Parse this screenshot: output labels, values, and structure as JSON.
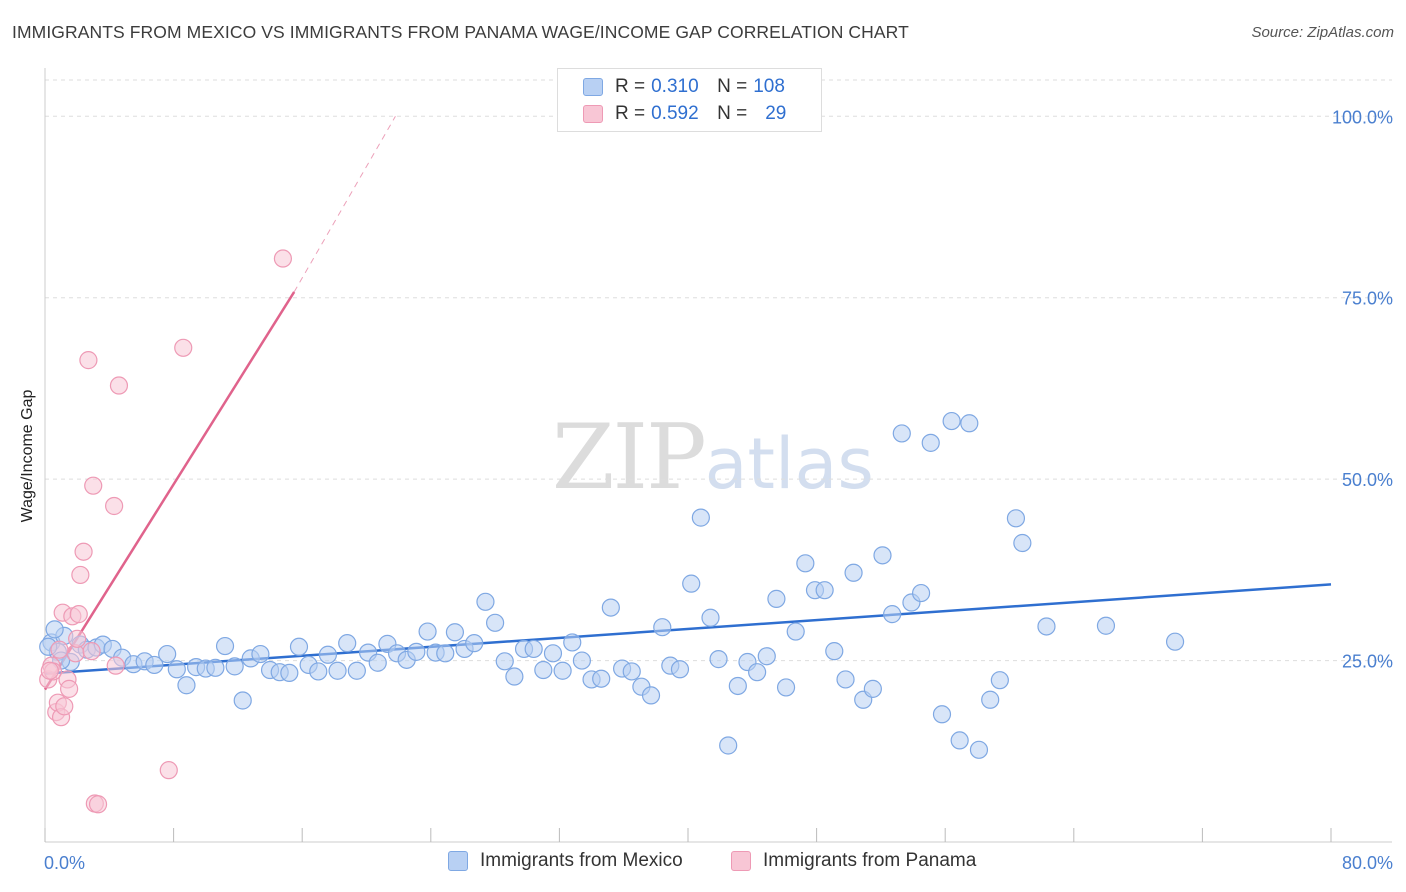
{
  "title": "IMMIGRANTS FROM MEXICO VS IMMIGRANTS FROM PANAMA WAGE/INCOME GAP CORRELATION CHART",
  "source": "Source: ZipAtlas.com",
  "watermark": {
    "zip": "ZIP",
    "atlas": "atlas"
  },
  "colors": {
    "mexico_fill": "#b8d0f3",
    "mexico_stroke": "#7fa8e3",
    "mexico_line": "#2f6fd0",
    "panama_fill": "#f8c6d5",
    "panama_stroke": "#ee9ab5",
    "panama_line": "#e0638c",
    "grid": "#dddddd",
    "axis_text": "#4a7fcf"
  },
  "legend": {
    "rows": [
      {
        "r_label": "R = ",
        "r_value": "0.310",
        "n_label": "N = ",
        "n_value": "108"
      },
      {
        "r_label": "R = ",
        "r_value": "0.592",
        "n_label": "N = ",
        "n_value": "29"
      }
    ]
  },
  "chart_data": {
    "type": "scatter",
    "title": "IMMIGRANTS FROM MEXICO VS IMMIGRANTS FROM PANAMA WAGE/INCOME GAP CORRELATION CHART",
    "xlabel": "",
    "ylabel": "Wage/Income Gap",
    "xlim": [
      0,
      80
    ],
    "ylim": [
      0,
      105
    ],
    "x_tick_labels": [
      "0.0%",
      "80.0%"
    ],
    "y_ticks": [
      25,
      50,
      75,
      100
    ],
    "y_tick_labels": [
      "25.0%",
      "50.0%",
      "75.0%",
      "100.0%"
    ],
    "series": [
      {
        "name": "Immigrants from Mexico",
        "r": 0.31,
        "n": 108,
        "trend": {
          "x0": 0,
          "y0": 23.2,
          "x1": 80,
          "y1": 35.5
        },
        "points": [
          [
            0.4,
            27.5
          ],
          [
            0.8,
            26.2
          ],
          [
            1.2,
            28.4
          ],
          [
            1.6,
            24.8
          ],
          [
            2.2,
            27.2
          ],
          [
            2.6,
            26.5
          ],
          [
            3.2,
            26.8
          ],
          [
            3.6,
            27.2
          ],
          [
            4.2,
            26.6
          ],
          [
            4.8,
            25.4
          ],
          [
            5.5,
            24.5
          ],
          [
            6.2,
            24.9
          ],
          [
            6.8,
            24.4
          ],
          [
            7.6,
            25.9
          ],
          [
            8.2,
            23.8
          ],
          [
            8.8,
            21.6
          ],
          [
            9.4,
            24.1
          ],
          [
            10.0,
            23.9
          ],
          [
            10.6,
            24.0
          ],
          [
            11.2,
            27.0
          ],
          [
            11.8,
            24.2
          ],
          [
            12.3,
            19.5
          ],
          [
            12.8,
            25.3
          ],
          [
            13.4,
            25.9
          ],
          [
            14.0,
            23.7
          ],
          [
            14.6,
            23.4
          ],
          [
            15.2,
            23.3
          ],
          [
            15.8,
            26.9
          ],
          [
            16.4,
            24.4
          ],
          [
            17.0,
            23.5
          ],
          [
            17.6,
            25.8
          ],
          [
            18.2,
            23.6
          ],
          [
            18.8,
            27.4
          ],
          [
            19.4,
            23.6
          ],
          [
            20.1,
            26.1
          ],
          [
            20.7,
            24.7
          ],
          [
            21.3,
            27.3
          ],
          [
            21.9,
            26.0
          ],
          [
            22.5,
            25.1
          ],
          [
            23.1,
            26.2
          ],
          [
            23.8,
            29.0
          ],
          [
            24.3,
            26.1
          ],
          [
            24.9,
            26.0
          ],
          [
            25.5,
            28.9
          ],
          [
            26.1,
            26.6
          ],
          [
            26.7,
            27.4
          ],
          [
            27.4,
            33.1
          ],
          [
            28.0,
            30.2
          ],
          [
            28.6,
            24.9
          ],
          [
            29.2,
            22.8
          ],
          [
            29.8,
            26.6
          ],
          [
            30.4,
            26.6
          ],
          [
            31.0,
            23.7
          ],
          [
            31.6,
            26.0
          ],
          [
            32.2,
            23.6
          ],
          [
            32.8,
            27.5
          ],
          [
            33.4,
            25.0
          ],
          [
            34.0,
            22.4
          ],
          [
            34.6,
            22.5
          ],
          [
            35.2,
            32.3
          ],
          [
            35.9,
            23.9
          ],
          [
            36.5,
            23.5
          ],
          [
            37.1,
            21.4
          ],
          [
            37.7,
            20.2
          ],
          [
            38.4,
            29.6
          ],
          [
            38.9,
            24.3
          ],
          [
            39.5,
            23.8
          ],
          [
            40.2,
            35.6
          ],
          [
            40.8,
            44.7
          ],
          [
            41.4,
            30.9
          ],
          [
            41.9,
            25.2
          ],
          [
            42.5,
            13.3
          ],
          [
            43.1,
            21.5
          ],
          [
            43.7,
            24.8
          ],
          [
            44.3,
            23.4
          ],
          [
            44.9,
            25.6
          ],
          [
            45.5,
            33.5
          ],
          [
            46.1,
            21.3
          ],
          [
            46.7,
            29.0
          ],
          [
            47.3,
            38.4
          ],
          [
            47.9,
            34.7
          ],
          [
            48.5,
            34.7
          ],
          [
            49.1,
            26.3
          ],
          [
            49.8,
            22.4
          ],
          [
            50.3,
            37.1
          ],
          [
            50.9,
            19.6
          ],
          [
            51.5,
            21.1
          ],
          [
            52.1,
            39.5
          ],
          [
            52.7,
            31.4
          ],
          [
            53.3,
            56.3
          ],
          [
            53.9,
            33.0
          ],
          [
            54.5,
            34.3
          ],
          [
            55.1,
            55.0
          ],
          [
            55.8,
            17.6
          ],
          [
            56.4,
            58.0
          ],
          [
            56.9,
            14.0
          ],
          [
            57.5,
            57.7
          ],
          [
            58.1,
            12.7
          ],
          [
            58.8,
            19.6
          ],
          [
            59.4,
            22.3
          ],
          [
            60.4,
            44.6
          ],
          [
            60.8,
            41.2
          ],
          [
            62.3,
            29.7
          ],
          [
            66.0,
            29.8
          ],
          [
            70.3,
            27.6
          ],
          [
            0.6,
            29.3
          ],
          [
            1.0,
            25.0
          ],
          [
            0.2,
            26.9
          ]
        ]
      },
      {
        "name": "Immigrants from Panama",
        "r": 0.592,
        "n": 29,
        "trend_solid": {
          "x0": 0,
          "y0": 21.0,
          "x1": 15.5,
          "y1": 75.8
        },
        "trend_dashed": {
          "x0": 15.5,
          "y0": 75.8,
          "x1": 21.8,
          "y1": 100.0
        },
        "points": [
          [
            0.2,
            22.4
          ],
          [
            0.4,
            24.3
          ],
          [
            0.5,
            23.5
          ],
          [
            0.7,
            17.9
          ],
          [
            0.8,
            19.2
          ],
          [
            1.0,
            17.2
          ],
          [
            1.1,
            31.6
          ],
          [
            1.2,
            18.7
          ],
          [
            1.4,
            22.4
          ],
          [
            1.5,
            21.1
          ],
          [
            1.7,
            31.1
          ],
          [
            1.9,
            26.0
          ],
          [
            2.0,
            28.0
          ],
          [
            2.1,
            31.4
          ],
          [
            2.2,
            36.8
          ],
          [
            2.4,
            40.0
          ],
          [
            2.7,
            66.4
          ],
          [
            2.9,
            26.3
          ],
          [
            3.0,
            49.1
          ],
          [
            3.1,
            5.3
          ],
          [
            3.3,
            5.2
          ],
          [
            4.3,
            46.3
          ],
          [
            4.4,
            24.3
          ],
          [
            4.6,
            62.9
          ],
          [
            7.7,
            9.9
          ],
          [
            8.6,
            68.1
          ],
          [
            14.8,
            80.4
          ],
          [
            0.3,
            23.6
          ],
          [
            0.9,
            26.5
          ]
        ]
      }
    ]
  },
  "bottom_legend": {
    "mexico_label": "Immigrants from Mexico",
    "panama_label": "Immigrants from Panama"
  }
}
